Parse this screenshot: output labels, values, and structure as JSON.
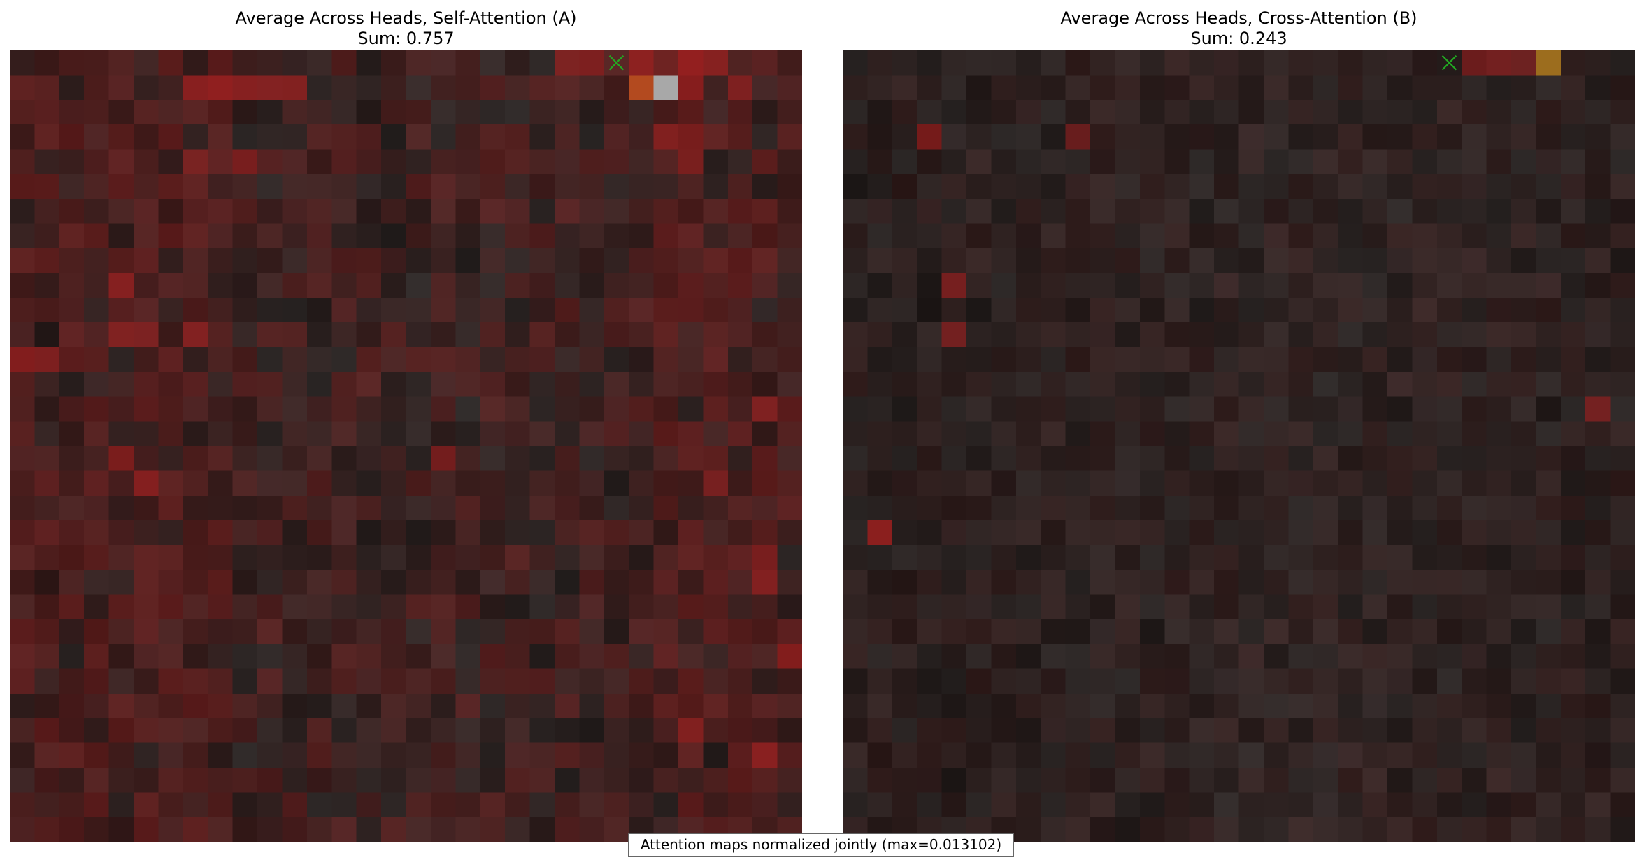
{
  "chart_data": [
    {
      "type": "heatmap",
      "title": "Average Across Heads, Self-Attention (A)",
      "subtitle": "Sum: 0.757",
      "rows": 32,
      "cols": 32,
      "grid": false,
      "background": "dark grayscale image blended with red attention overlay",
      "marker": {
        "symbol": "x",
        "color": "#22aa22",
        "row": 0,
        "col": 24
      },
      "highlights": [
        {
          "row": 0,
          "col": 22,
          "level": 0.55
        },
        {
          "row": 0,
          "col": 23,
          "level": 0.6
        },
        {
          "row": 0,
          "col": 25,
          "level": 0.8
        },
        {
          "row": 0,
          "col": 26,
          "level": 0.35
        },
        {
          "row": 0,
          "col": 27,
          "level": 0.9
        },
        {
          "row": 0,
          "col": 28,
          "level": 0.7
        },
        {
          "row": 1,
          "col": 7,
          "level": 0.75
        },
        {
          "row": 1,
          "col": 8,
          "level": 0.85
        },
        {
          "row": 1,
          "col": 9,
          "level": 0.7
        },
        {
          "row": 1,
          "col": 10,
          "level": 0.65
        },
        {
          "row": 1,
          "col": 11,
          "level": 0.65
        },
        {
          "row": 1,
          "col": 25,
          "level": 0.85,
          "color": "#b34a1f"
        },
        {
          "row": 1,
          "col": 26,
          "level": 1.0,
          "color": "#a8a8a8"
        },
        {
          "row": 1,
          "col": 27,
          "level": 0.75
        },
        {
          "row": 1,
          "col": 29,
          "level": 0.6
        },
        {
          "row": 3,
          "col": 26,
          "level": 0.65
        },
        {
          "row": 3,
          "col": 27,
          "level": 0.55
        },
        {
          "row": 4,
          "col": 7,
          "level": 0.5
        },
        {
          "row": 4,
          "col": 9,
          "level": 0.55
        },
        {
          "row": 4,
          "col": 27,
          "level": 0.55
        },
        {
          "row": 9,
          "col": 4,
          "level": 0.7
        },
        {
          "row": 11,
          "col": 4,
          "level": 0.6
        },
        {
          "row": 11,
          "col": 5,
          "level": 0.55
        },
        {
          "row": 11,
          "col": 7,
          "level": 0.65
        },
        {
          "row": 12,
          "col": 0,
          "level": 0.7
        },
        {
          "row": 12,
          "col": 1,
          "level": 0.6
        },
        {
          "row": 14,
          "col": 30,
          "level": 0.6
        },
        {
          "row": 16,
          "col": 4,
          "level": 0.6
        },
        {
          "row": 16,
          "col": 17,
          "level": 0.5
        },
        {
          "row": 17,
          "col": 5,
          "level": 0.7
        },
        {
          "row": 17,
          "col": 28,
          "level": 0.5
        },
        {
          "row": 20,
          "col": 30,
          "level": 0.55
        },
        {
          "row": 21,
          "col": 30,
          "level": 0.65
        },
        {
          "row": 24,
          "col": 31,
          "level": 0.7
        },
        {
          "row": 27,
          "col": 27,
          "level": 0.65
        },
        {
          "row": 28,
          "col": 30,
          "level": 0.75
        }
      ]
    },
    {
      "type": "heatmap",
      "title": "Average Across Heads, Cross-Attention (B)",
      "subtitle": "Sum: 0.243",
      "rows": 32,
      "cols": 32,
      "grid": false,
      "background": "dark grayscale image blended with red attention overlay",
      "marker": {
        "symbol": "x",
        "color": "#22aa22",
        "row": 0,
        "col": 24
      },
      "highlights": [
        {
          "row": 0,
          "col": 25,
          "level": 0.4
        },
        {
          "row": 0,
          "col": 26,
          "level": 0.45
        },
        {
          "row": 0,
          "col": 27,
          "level": 0.35
        },
        {
          "row": 0,
          "col": 28,
          "level": 1.0,
          "color": "#9c6d1e"
        },
        {
          "row": 3,
          "col": 3,
          "level": 0.55
        },
        {
          "row": 3,
          "col": 9,
          "level": 0.35
        },
        {
          "row": 9,
          "col": 4,
          "level": 0.5
        },
        {
          "row": 11,
          "col": 4,
          "level": 0.45
        },
        {
          "row": 14,
          "col": 30,
          "level": 0.45
        },
        {
          "row": 19,
          "col": 1,
          "level": 0.8
        }
      ]
    }
  ],
  "caption": "Attention maps normalized jointly (max=0.013102)",
  "colors": {
    "overlay_red": "#a01e1e",
    "dark_base": "#1c1818",
    "marker_green": "#22aa22",
    "caption_border": "#666666"
  }
}
